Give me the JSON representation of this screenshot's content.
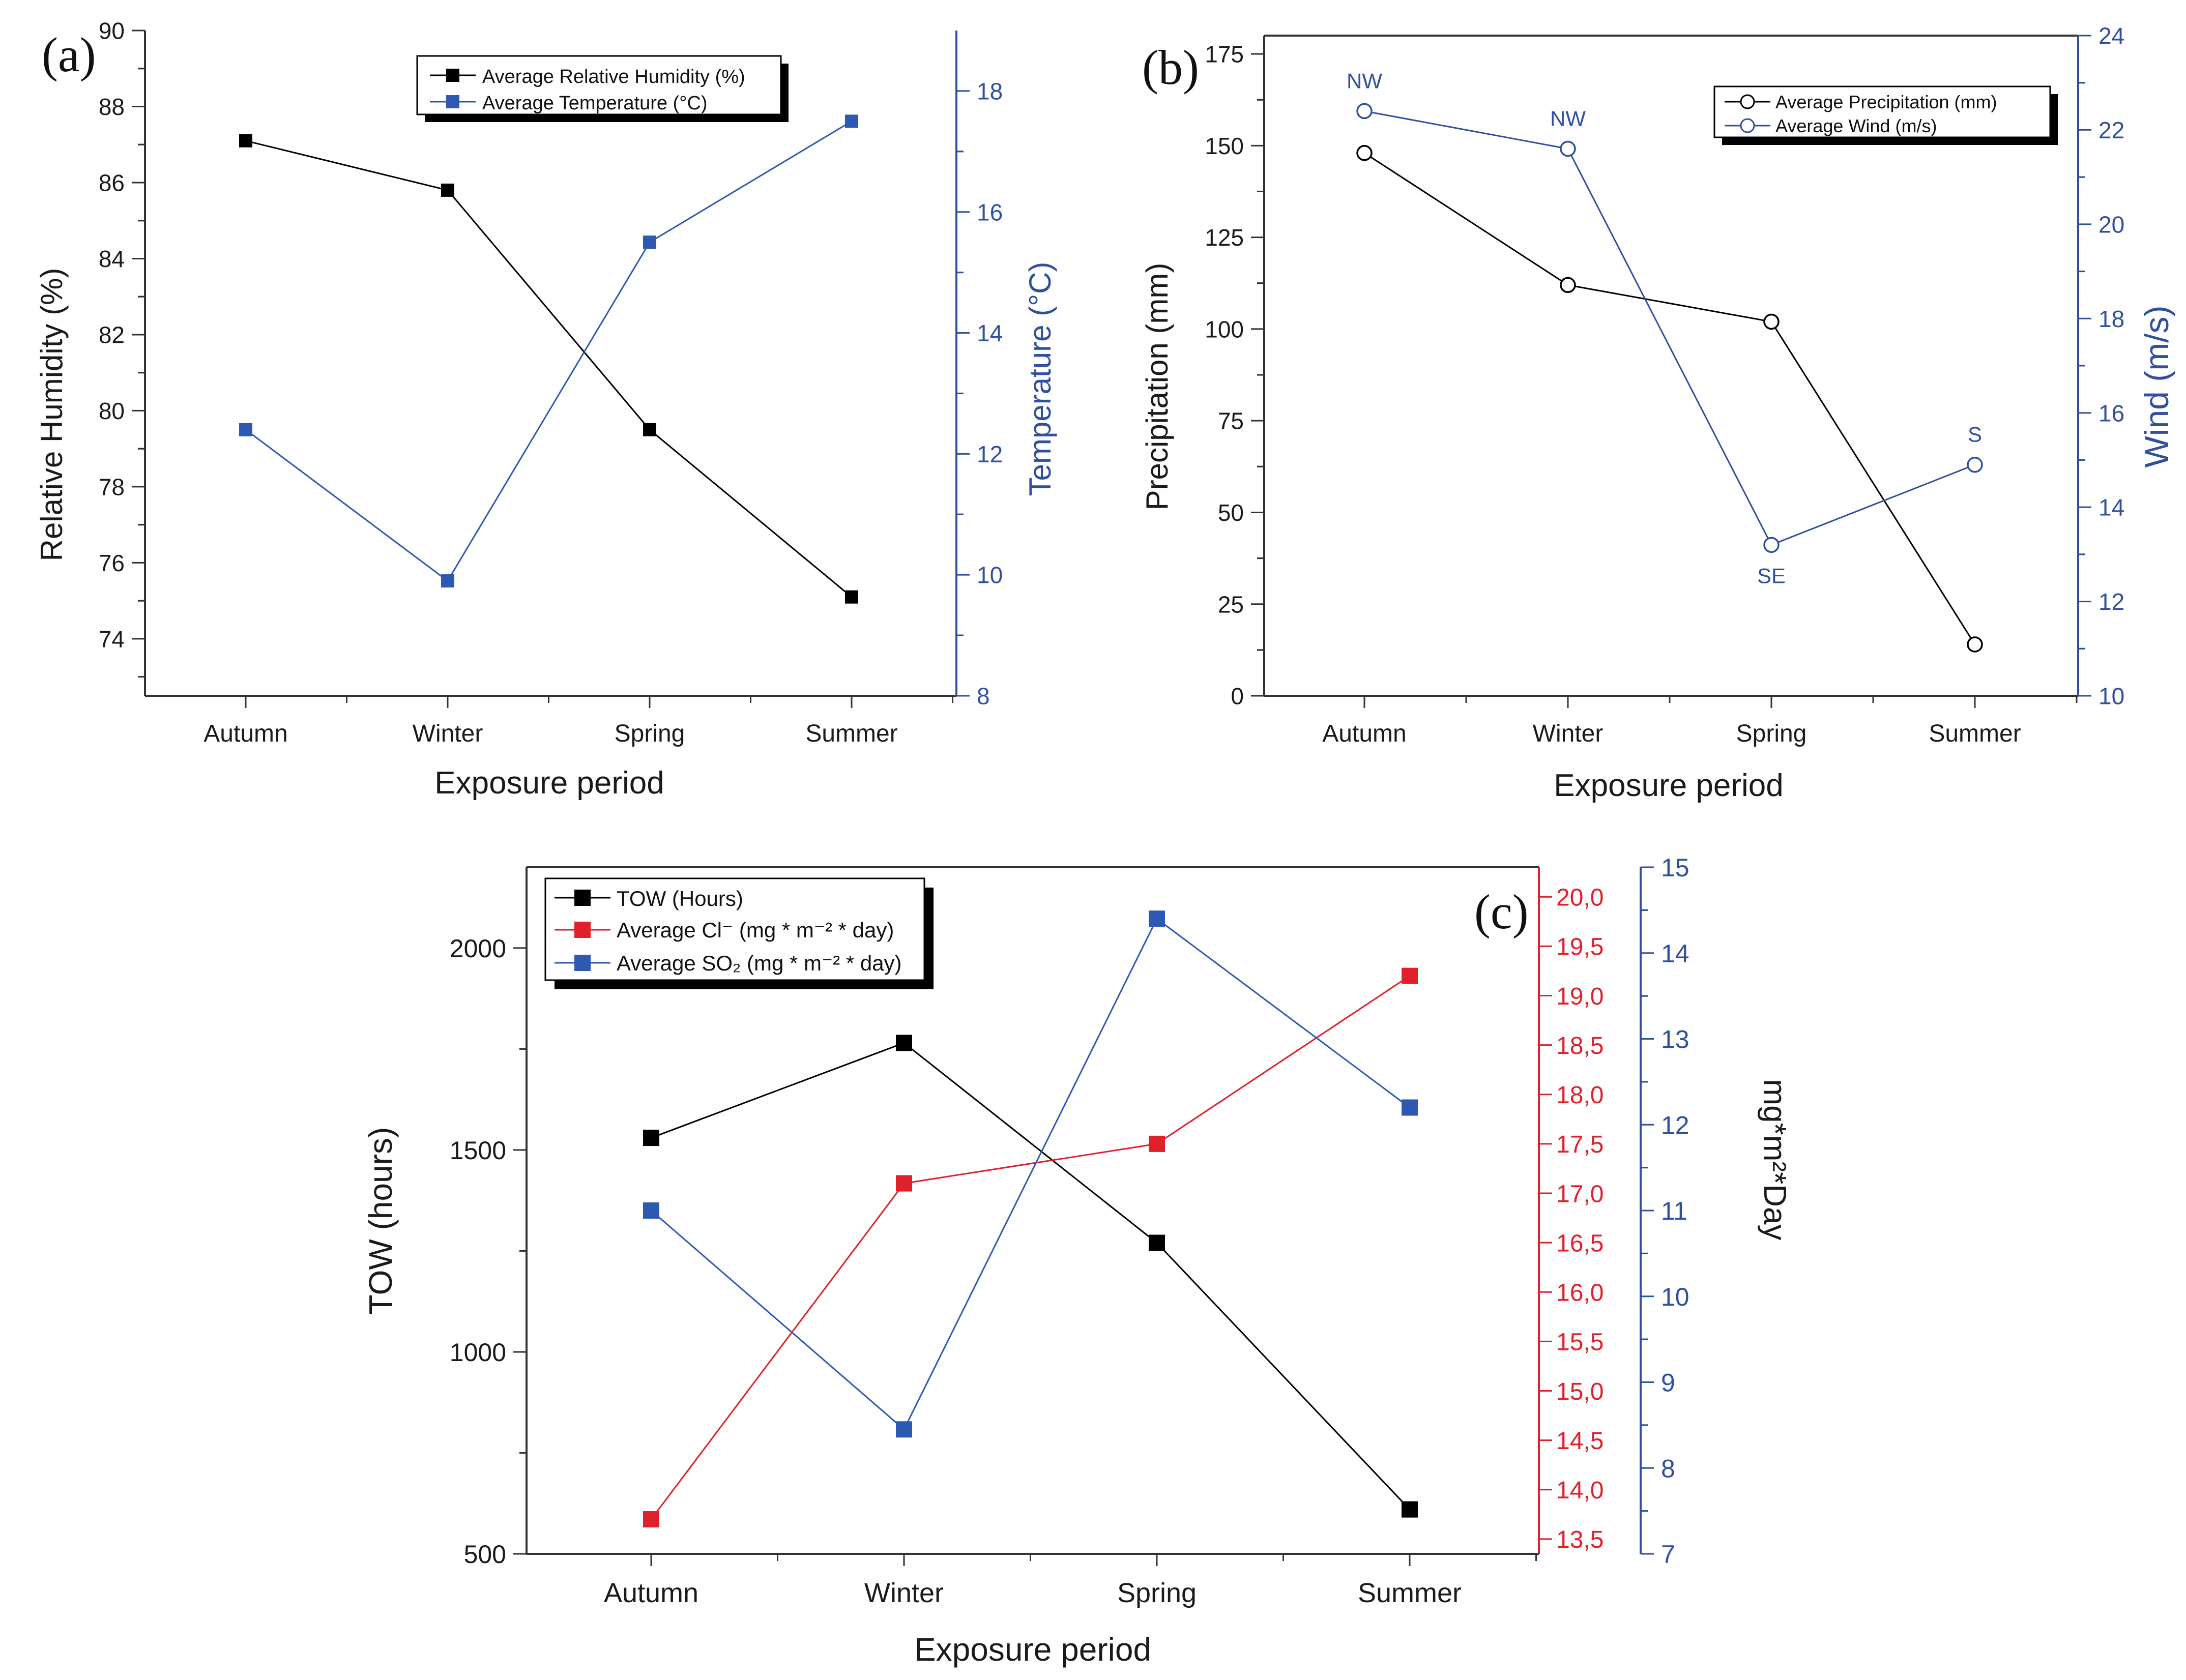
{
  "chart_data": [
    {
      "type": "line",
      "panel_label": "(a)",
      "xlabel": "Exposure period",
      "categories": [
        "Autumn",
        "Winter",
        "Spring",
        "Summer"
      ],
      "left_axis": {
        "label": "Relative Humidity (%)",
        "range": [
          72.5,
          90
        ],
        "ticks": [
          74,
          76,
          78,
          80,
          82,
          84,
          86,
          88,
          90
        ],
        "tick_labels": [
          "74",
          "76",
          "78",
          "80",
          "82",
          "84",
          "86",
          "88",
          "90"
        ],
        "color": "#000000"
      },
      "right_axis": {
        "label": "Temperature (°C)",
        "range": [
          8,
          19
        ],
        "ticks": [
          8,
          10,
          12,
          14,
          16,
          18
        ],
        "tick_labels": [
          "8",
          "10",
          "12",
          "14",
          "16",
          "18"
        ],
        "color": "#2f4f9f"
      },
      "series": [
        {
          "name": "Average Relative Humidity (%)",
          "axis": "left",
          "marker": "square-filled",
          "color": "#000000",
          "values": [
            87.1,
            85.8,
            79.5,
            75.1
          ]
        },
        {
          "name": "Average Temperature (°C)",
          "axis": "right",
          "marker": "square-filled",
          "color": "#2d59b3",
          "values": [
            12.4,
            9.9,
            15.5,
            17.5
          ]
        }
      ],
      "legend_position": "top-right"
    },
    {
      "type": "line",
      "panel_label": "(b)",
      "xlabel": "Exposure period",
      "categories": [
        "Autumn",
        "Winter",
        "Spring",
        "Summer"
      ],
      "left_axis": {
        "label": "Precipitation (mm)",
        "range": [
          0,
          180
        ],
        "ticks": [
          0,
          25,
          50,
          75,
          100,
          125,
          150,
          175
        ],
        "tick_labels": [
          "0",
          "25",
          "50",
          "75",
          "100",
          "125",
          "150",
          "175"
        ],
        "color": "#000000"
      },
      "right_axis": {
        "label": "Wind (m/s)",
        "range": [
          10,
          24
        ],
        "ticks": [
          10,
          12,
          14,
          16,
          18,
          20,
          22,
          24
        ],
        "tick_labels": [
          "10",
          "12",
          "14",
          "16",
          "18",
          "20",
          "22",
          "24"
        ],
        "color": "#2f4f9f"
      },
      "series": [
        {
          "name": "Average Precipitation (mm)",
          "axis": "left",
          "marker": "circle-open",
          "color": "#000000",
          "values": [
            148,
            112,
            102,
            14
          ]
        },
        {
          "name": "Average Wind (m/s)",
          "axis": "right",
          "marker": "circle-open",
          "color": "#2f4f9f",
          "values": [
            22.4,
            21.6,
            13.2,
            14.9
          ]
        }
      ],
      "annotations": [
        {
          "text": "NW",
          "category": "Autumn",
          "position": "above"
        },
        {
          "text": "NW",
          "category": "Winter",
          "position": "above"
        },
        {
          "text": "SE",
          "category": "Spring",
          "position": "below"
        },
        {
          "text": "S",
          "category": "Summer",
          "position": "above"
        }
      ],
      "legend_position": "top-right"
    },
    {
      "type": "line",
      "panel_label": "(c)",
      "xlabel": "Exposure period",
      "categories": [
        "Autumn",
        "Winter",
        "Spring",
        "Summer"
      ],
      "left_axis": {
        "label": "TOW (hours)",
        "range": [
          500,
          2200
        ],
        "ticks": [
          500,
          1000,
          1500,
          2000
        ],
        "tick_labels": [
          "500",
          "1000",
          "1500",
          "2000"
        ],
        "color": "#000000"
      },
      "right_axis_1": {
        "label": "",
        "range": [
          13.35,
          20.3
        ],
        "ticks": [
          13.5,
          14.0,
          14.5,
          15.0,
          15.5,
          16.0,
          16.5,
          17.0,
          17.5,
          18.0,
          18.5,
          19.0,
          19.5,
          20.0
        ],
        "tick_labels": [
          "13,5",
          "14,0",
          "14,5",
          "15,0",
          "15,5",
          "16,0",
          "16,5",
          "17,0",
          "17,5",
          "18,0",
          "18,5",
          "19,0",
          "19,5",
          "20,0"
        ],
        "color": "#e0202a"
      },
      "right_axis_2": {
        "label": "mg*m²*Day",
        "range": [
          7,
          15
        ],
        "ticks": [
          7,
          8,
          9,
          10,
          11,
          12,
          13,
          14,
          15
        ],
        "tick_labels": [
          "7",
          "8",
          "9",
          "10",
          "11",
          "12",
          "13",
          "14",
          "15"
        ],
        "color": "#2f4f9f"
      },
      "series": [
        {
          "name": "TOW (Hours)",
          "axis": "left",
          "marker": "square-filled",
          "color": "#000000",
          "values": [
            1530,
            1765,
            1270,
            610
          ]
        },
        {
          "name": "Average Cl⁻ (mg * m⁻² * day)",
          "axis": "right1",
          "marker": "square-filled",
          "color": "#e0202a",
          "values": [
            13.7,
            17.1,
            17.5,
            19.2
          ]
        },
        {
          "name": "Average SO₂ (mg * m⁻² * day)",
          "axis": "right2",
          "marker": "square-filled",
          "color": "#2d59b3",
          "values": [
            11.0,
            8.45,
            14.4,
            12.2
          ]
        }
      ],
      "legend_position": "top-left"
    }
  ]
}
